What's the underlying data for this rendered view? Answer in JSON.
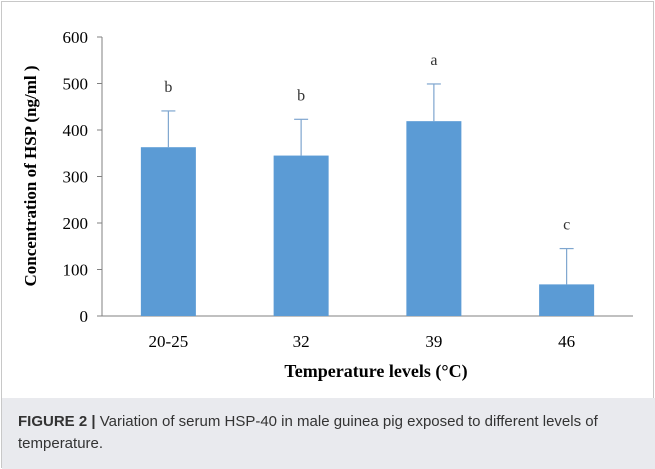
{
  "chart_data": {
    "type": "bar",
    "categories": [
      "20-25",
      "32",
      "39",
      "46"
    ],
    "values": [
      363,
      345,
      419,
      68
    ],
    "error_plus": [
      78,
      78,
      80,
      77
    ],
    "significance_labels": [
      "b",
      "b",
      "a",
      "c"
    ],
    "xlabel": "Temperature levels (°C)",
    "ylabel": "Concentration of HSP (ng/ml )",
    "ylim": [
      0,
      600
    ],
    "yticks": [
      0,
      100,
      200,
      300,
      400,
      500,
      600
    ],
    "grid": false,
    "legend": "none",
    "bar_color": "#5b9bd5",
    "error_bar_color": "#7fa6cf"
  },
  "caption": {
    "label": "FIGURE 2 |",
    "text": " Variation of serum HSP-40 in male guinea pig exposed to different levels of temperature."
  }
}
